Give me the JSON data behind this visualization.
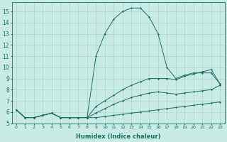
{
  "xlabel": "Humidex (Indice chaleur)",
  "bg_color": "#c8ebe5",
  "grid_color": "#a8d5cc",
  "line_color": "#1a6e60",
  "xlim": [
    -0.5,
    23.5
  ],
  "ylim": [
    5,
    15.8
  ],
  "xticks": [
    0,
    1,
    2,
    3,
    4,
    5,
    6,
    7,
    8,
    9,
    10,
    11,
    12,
    13,
    14,
    15,
    16,
    17,
    18,
    19,
    20,
    21,
    22,
    23
  ],
  "yticks": [
    5,
    6,
    7,
    8,
    9,
    10,
    11,
    12,
    13,
    14,
    15
  ],
  "series": [
    {
      "x": [
        0,
        1,
        2,
        3,
        4,
        5,
        6,
        7,
        8,
        9,
        10,
        11,
        12,
        13,
        14,
        15,
        16,
        17,
        18,
        19,
        20,
        21,
        22,
        23
      ],
      "y": [
        6.2,
        5.5,
        5.5,
        5.7,
        5.9,
        5.5,
        5.5,
        5.5,
        5.5,
        5.5,
        5.6,
        5.7,
        5.8,
        5.9,
        6.0,
        6.1,
        6.2,
        6.3,
        6.4,
        6.5,
        6.6,
        6.7,
        6.8,
        6.9
      ]
    },
    {
      "x": [
        0,
        1,
        2,
        3,
        4,
        5,
        6,
        7,
        8,
        9,
        10,
        11,
        12,
        13,
        14,
        15,
        16,
        17,
        18,
        19,
        20,
        21,
        22,
        23
      ],
      "y": [
        6.2,
        5.5,
        5.5,
        5.7,
        5.9,
        5.5,
        5.5,
        5.5,
        5.5,
        5.9,
        6.3,
        6.7,
        7.0,
        7.3,
        7.5,
        7.7,
        7.8,
        7.7,
        7.6,
        7.7,
        7.8,
        7.9,
        8.0,
        8.4
      ]
    },
    {
      "x": [
        0,
        1,
        2,
        3,
        4,
        5,
        6,
        7,
        8,
        9,
        10,
        11,
        12,
        13,
        14,
        15,
        16,
        17,
        18,
        19,
        20,
        21,
        22,
        23
      ],
      "y": [
        6.2,
        5.5,
        5.5,
        5.7,
        5.9,
        5.5,
        5.5,
        5.5,
        5.5,
        6.5,
        7.0,
        7.5,
        8.0,
        8.4,
        8.7,
        9.0,
        9.0,
        9.0,
        8.9,
        9.2,
        9.4,
        9.6,
        9.8,
        8.5
      ]
    },
    {
      "x": [
        0,
        1,
        2,
        3,
        4,
        5,
        6,
        7,
        8,
        9,
        10,
        11,
        12,
        13,
        14,
        15,
        16,
        17,
        18,
        19,
        20,
        21,
        22,
        23
      ],
      "y": [
        6.2,
        5.5,
        5.5,
        5.7,
        5.9,
        5.5,
        5.5,
        5.5,
        5.5,
        11.0,
        13.0,
        14.3,
        15.0,
        15.3,
        15.3,
        14.5,
        13.0,
        10.0,
        9.0,
        9.3,
        9.5,
        9.5,
        9.5,
        8.5
      ]
    }
  ]
}
